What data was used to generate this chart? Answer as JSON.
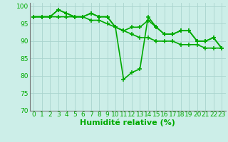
{
  "xlabel": "Humidité relative (%)",
  "xlim": [
    -0.5,
    23.5
  ],
  "ylim": [
    70,
    101
  ],
  "yticks": [
    70,
    75,
    80,
    85,
    90,
    95,
    100
  ],
  "xticks": [
    0,
    1,
    2,
    3,
    4,
    5,
    6,
    7,
    8,
    9,
    10,
    11,
    12,
    13,
    14,
    15,
    16,
    17,
    18,
    19,
    20,
    21,
    22,
    23
  ],
  "background_color": "#cceee8",
  "grid_color": "#aad4ce",
  "line_color": "#00aa00",
  "series": [
    [
      97,
      97,
      97,
      99,
      98,
      97,
      97,
      98,
      97,
      97,
      94,
      79,
      81,
      82,
      97,
      94,
      92,
      92,
      93,
      93,
      90,
      90,
      91,
      88
    ],
    [
      97,
      97,
      97,
      99,
      98,
      97,
      97,
      98,
      97,
      97,
      94,
      93,
      94,
      94,
      96,
      94,
      92,
      92,
      93,
      93,
      90,
      90,
      91,
      88
    ],
    [
      97,
      97,
      97,
      97,
      97,
      97,
      97,
      96,
      96,
      95,
      94,
      93,
      92,
      91,
      91,
      90,
      90,
      90,
      89,
      89,
      89,
      88,
      88,
      88
    ]
  ],
  "xlabel_fontsize": 8,
  "tick_fontsize": 6.5,
  "line_width": 1.2,
  "marker_size": 4.5,
  "marker_ew": 1.1
}
